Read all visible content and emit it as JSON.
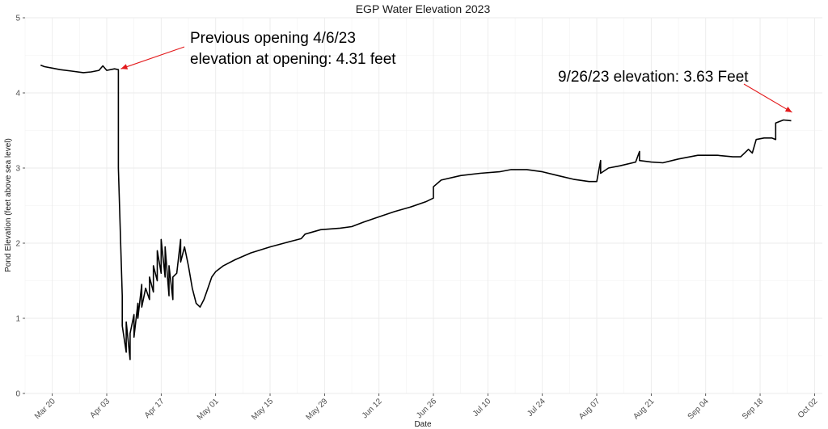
{
  "chart_data": {
    "type": "line",
    "title": "EGP Water Elevation 2023",
    "xlabel": "Date",
    "ylabel": "Pond Elevation (feet above sea level)",
    "ylim": [
      0,
      5
    ],
    "y_ticks": [
      0,
      1,
      2,
      3,
      4,
      5
    ],
    "xlim": [
      "2023-03-13",
      "2023-10-04"
    ],
    "x_ticks": [
      {
        "date": "2023-03-20",
        "label": "Mar 20"
      },
      {
        "date": "2023-04-03",
        "label": "Apr 03"
      },
      {
        "date": "2023-04-17",
        "label": "Apr 17"
      },
      {
        "date": "2023-05-01",
        "label": "May 01"
      },
      {
        "date": "2023-05-15",
        "label": "May 15"
      },
      {
        "date": "2023-05-29",
        "label": "May 29"
      },
      {
        "date": "2023-06-12",
        "label": "Jun 12"
      },
      {
        "date": "2023-06-26",
        "label": "Jun 26"
      },
      {
        "date": "2023-07-10",
        "label": "Jul 10"
      },
      {
        "date": "2023-07-24",
        "label": "Jul 24"
      },
      {
        "date": "2023-08-07",
        "label": "Aug 07"
      },
      {
        "date": "2023-08-21",
        "label": "Aug 21"
      },
      {
        "date": "2023-09-04",
        "label": "Sep 04"
      },
      {
        "date": "2023-09-18",
        "label": "Sep 18"
      },
      {
        "date": "2023-10-02",
        "label": "Oct 02"
      }
    ],
    "grid": true,
    "line_color": "#000000",
    "series": [
      {
        "points": [
          [
            "2023-03-17",
            4.37
          ],
          [
            "2023-03-18",
            4.35
          ],
          [
            "2023-03-20",
            4.33
          ],
          [
            "2023-03-22",
            4.31
          ],
          [
            "2023-03-25",
            4.29
          ],
          [
            "2023-03-28",
            4.27
          ],
          [
            "2023-03-30",
            4.28
          ],
          [
            "2023-04-01",
            4.3
          ],
          [
            "2023-04-02",
            4.36
          ],
          [
            "2023-04-03",
            4.3
          ],
          [
            "2023-04-05",
            4.32
          ],
          [
            "2023-04-06",
            4.31
          ],
          [
            "2023-04-06",
            3.0
          ],
          [
            "2023-04-07",
            1.3
          ],
          [
            "2023-04-07",
            0.9
          ],
          [
            "2023-04-08",
            0.55
          ],
          [
            "2023-04-08",
            0.95
          ],
          [
            "2023-04-09",
            0.45
          ],
          [
            "2023-04-09",
            0.8
          ],
          [
            "2023-04-10",
            1.05
          ],
          [
            "2023-04-10",
            0.75
          ],
          [
            "2023-04-11",
            1.2
          ],
          [
            "2023-04-11",
            1.0
          ],
          [
            "2023-04-12",
            1.45
          ],
          [
            "2023-04-12",
            1.15
          ],
          [
            "2023-04-13",
            1.4
          ],
          [
            "2023-04-14",
            1.25
          ],
          [
            "2023-04-14",
            1.55
          ],
          [
            "2023-04-15",
            1.35
          ],
          [
            "2023-04-15",
            1.7
          ],
          [
            "2023-04-16",
            1.5
          ],
          [
            "2023-04-16",
            1.9
          ],
          [
            "2023-04-17",
            1.6
          ],
          [
            "2023-04-17",
            2.05
          ],
          [
            "2023-04-18",
            1.55
          ],
          [
            "2023-04-18",
            1.95
          ],
          [
            "2023-04-19",
            1.3
          ],
          [
            "2023-04-19",
            1.7
          ],
          [
            "2023-04-20",
            1.25
          ],
          [
            "2023-04-20",
            1.55
          ],
          [
            "2023-04-21",
            1.6
          ],
          [
            "2023-04-22",
            2.05
          ],
          [
            "2023-04-22",
            1.75
          ],
          [
            "2023-04-23",
            1.95
          ],
          [
            "2023-04-24",
            1.7
          ],
          [
            "2023-04-25",
            1.4
          ],
          [
            "2023-04-26",
            1.2
          ],
          [
            "2023-04-27",
            1.15
          ],
          [
            "2023-04-28",
            1.25
          ],
          [
            "2023-04-29",
            1.4
          ],
          [
            "2023-04-30",
            1.55
          ],
          [
            "2023-05-01",
            1.62
          ],
          [
            "2023-05-03",
            1.7
          ],
          [
            "2023-05-06",
            1.78
          ],
          [
            "2023-05-10",
            1.87
          ],
          [
            "2023-05-15",
            1.95
          ],
          [
            "2023-05-20",
            2.02
          ],
          [
            "2023-05-23",
            2.06
          ],
          [
            "2023-05-24",
            2.12
          ],
          [
            "2023-05-28",
            2.18
          ],
          [
            "2023-06-02",
            2.2
          ],
          [
            "2023-06-05",
            2.22
          ],
          [
            "2023-06-08",
            2.28
          ],
          [
            "2023-06-12",
            2.35
          ],
          [
            "2023-06-16",
            2.42
          ],
          [
            "2023-06-20",
            2.48
          ],
          [
            "2023-06-24",
            2.55
          ],
          [
            "2023-06-26",
            2.6
          ],
          [
            "2023-06-26",
            2.75
          ],
          [
            "2023-06-28",
            2.84
          ],
          [
            "2023-07-03",
            2.9
          ],
          [
            "2023-07-08",
            2.93
          ],
          [
            "2023-07-13",
            2.95
          ],
          [
            "2023-07-16",
            2.98
          ],
          [
            "2023-07-20",
            2.98
          ],
          [
            "2023-07-24",
            2.95
          ],
          [
            "2023-07-28",
            2.9
          ],
          [
            "2023-08-01",
            2.85
          ],
          [
            "2023-08-05",
            2.82
          ],
          [
            "2023-08-07",
            2.82
          ],
          [
            "2023-08-08",
            3.1
          ],
          [
            "2023-08-08",
            2.93
          ],
          [
            "2023-08-10",
            3.0
          ],
          [
            "2023-08-13",
            3.03
          ],
          [
            "2023-08-17",
            3.08
          ],
          [
            "2023-08-18",
            3.22
          ],
          [
            "2023-08-18",
            3.1
          ],
          [
            "2023-08-21",
            3.08
          ],
          [
            "2023-08-24",
            3.07
          ],
          [
            "2023-08-28",
            3.12
          ],
          [
            "2023-09-02",
            3.17
          ],
          [
            "2023-09-07",
            3.17
          ],
          [
            "2023-09-11",
            3.15
          ],
          [
            "2023-09-13",
            3.15
          ],
          [
            "2023-09-15",
            3.25
          ],
          [
            "2023-09-16",
            3.2
          ],
          [
            "2023-09-17",
            3.38
          ],
          [
            "2023-09-19",
            3.4
          ],
          [
            "2023-09-21",
            3.4
          ],
          [
            "2023-09-22",
            3.38
          ],
          [
            "2023-09-22",
            3.6
          ],
          [
            "2023-09-24",
            3.64
          ],
          [
            "2023-09-26",
            3.63
          ]
        ]
      }
    ],
    "annotations": [
      {
        "line1": "Previous opening 4/6/23",
        "line2": "elevation at opening: 4.31 feet",
        "point": [
          "2023-04-06",
          4.31
        ],
        "arrow_color": "#e31a1c"
      },
      {
        "line1": "9/26/23 elevation: 3.63 Feet",
        "line2": "",
        "point": [
          "2023-09-26",
          3.72
        ],
        "arrow_color": "#e31a1c"
      }
    ]
  }
}
